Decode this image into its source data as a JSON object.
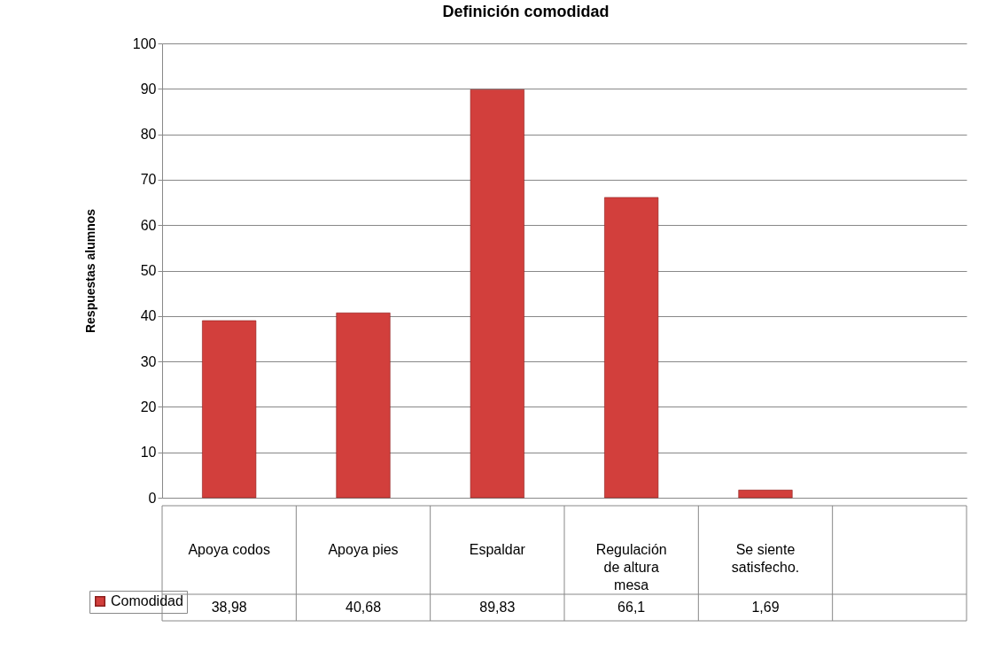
{
  "chart_data": {
    "type": "bar",
    "title": "Definición comodidad",
    "ylabel": "Respuestas alumnos",
    "categories": [
      "Apoya codos",
      "Apoya pies",
      "Espaldar",
      "Regulación de altura mesa",
      "Se siente satisfecho.",
      null
    ],
    "series": [
      {
        "name": "Comodidad",
        "color": "#d23f3c",
        "values": [
          38.98,
          40.68,
          89.83,
          66.1,
          1.69,
          null
        ],
        "value_labels": [
          "38,98",
          "40,68",
          "89,83",
          "66,1",
          "1,69",
          null
        ]
      }
    ],
    "ylim": [
      0,
      100
    ],
    "yticks": [
      0,
      10,
      20,
      30,
      40,
      50,
      60,
      70,
      80,
      90,
      100
    ],
    "grid": "y",
    "legend": "bottom left"
  }
}
